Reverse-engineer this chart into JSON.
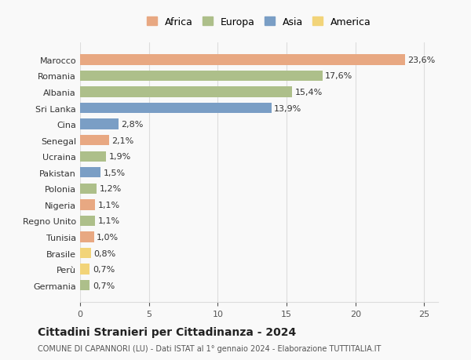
{
  "categories": [
    "Germania",
    "Perù",
    "Brasile",
    "Tunisia",
    "Regno Unito",
    "Nigeria",
    "Polonia",
    "Pakistan",
    "Ucraina",
    "Senegal",
    "Cina",
    "Sri Lanka",
    "Albania",
    "Romania",
    "Marocco"
  ],
  "values": [
    0.7,
    0.7,
    0.8,
    1.0,
    1.1,
    1.1,
    1.2,
    1.5,
    1.9,
    2.1,
    2.8,
    13.9,
    15.4,
    17.6,
    23.6
  ],
  "continents": [
    "Europa",
    "America",
    "America",
    "Africa",
    "Europa",
    "Africa",
    "Europa",
    "Asia",
    "Europa",
    "Africa",
    "Asia",
    "Asia",
    "Europa",
    "Europa",
    "Africa"
  ],
  "labels": [
    "0,7%",
    "0,7%",
    "0,8%",
    "1,0%",
    "1,1%",
    "1,1%",
    "1,2%",
    "1,5%",
    "1,9%",
    "2,1%",
    "2,8%",
    "13,9%",
    "15,4%",
    "17,6%",
    "23,6%"
  ],
  "colors": {
    "Africa": "#E8A882",
    "Europa": "#ADBF8A",
    "Asia": "#7A9EC5",
    "America": "#F2D479"
  },
  "background_color": "#f9f9f9",
  "title": "Cittadini Stranieri per Cittadinanza - 2024",
  "subtitle": "COMUNE DI CAPANNORI (LU) - Dati ISTAT al 1° gennaio 2024 - Elaborazione TUTTITALIA.IT",
  "xlim": [
    0,
    26
  ],
  "xticks": [
    0,
    5,
    10,
    15,
    20,
    25
  ],
  "grid_color": "#dddddd",
  "legend_order": [
    "Africa",
    "Europa",
    "Asia",
    "America"
  ]
}
